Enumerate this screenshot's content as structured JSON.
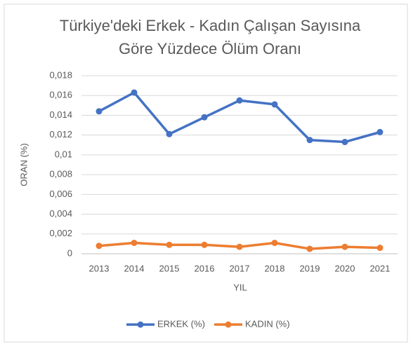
{
  "chart_data": {
    "type": "line",
    "title": "Türkiye'deki Erkek - Kadın Çalışan Sayısına Göre Yüzdece Ölüm Oranı",
    "x_label": "YIL",
    "y_label": "ORAN (%)",
    "categories": [
      "2013",
      "2014",
      "2015",
      "2016",
      "2017",
      "2018",
      "2019",
      "2020",
      "2021"
    ],
    "series": [
      {
        "name": "ERKEK (%)",
        "color": "#4472c4",
        "values": [
          0.0144,
          0.0163,
          0.0121,
          0.0138,
          0.0155,
          0.0151,
          0.0115,
          0.0113,
          0.0123
        ]
      },
      {
        "name": "KADIN (%)",
        "color": "#ed7d31",
        "values": [
          0.0008,
          0.0011,
          0.0009,
          0.0009,
          0.0007,
          0.0011,
          0.0005,
          0.0007,
          0.0006
        ]
      }
    ],
    "ylim": [
      0,
      0.018
    ],
    "yticks": [
      0,
      {
        "value": 0.002,
        "label": "0,002"
      },
      {
        "value": 0.004,
        "label": "0,004"
      },
      {
        "value": 0.006,
        "label": "0,006"
      },
      {
        "value": 0.008,
        "label": "0,008"
      },
      {
        "value": 0.01,
        "label": "0,01"
      },
      {
        "value": 0.012,
        "label": "0,012"
      },
      {
        "value": 0.014,
        "label": "0,014"
      },
      {
        "value": 0.016,
        "label": "0,016"
      },
      {
        "value": 0.018,
        "label": "0,018"
      }
    ],
    "grid": true,
    "legend": "bottom"
  }
}
